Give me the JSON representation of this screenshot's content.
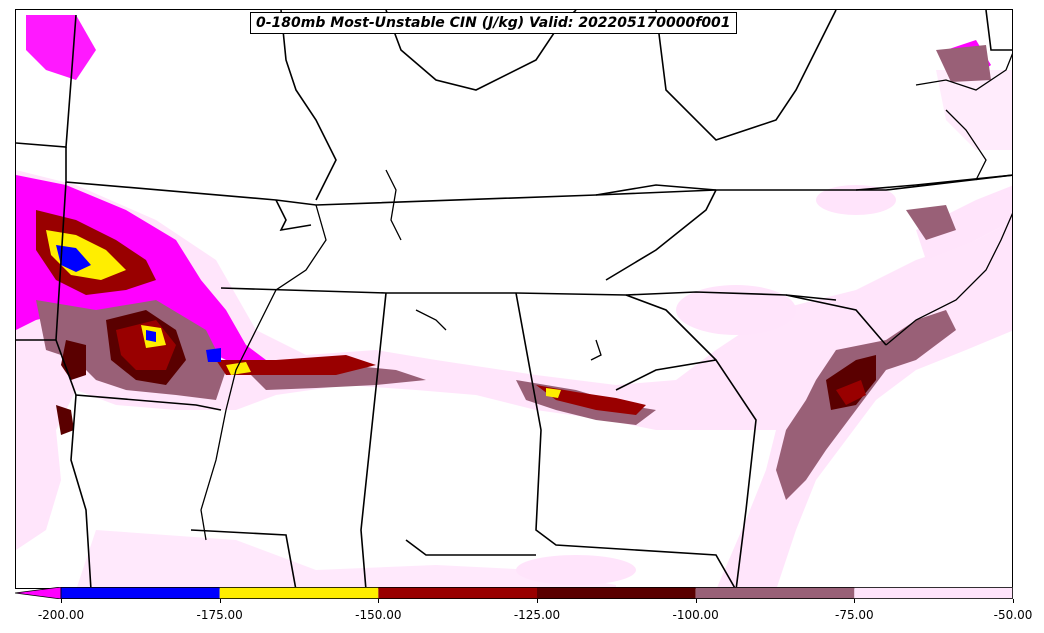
{
  "title": "0-180mb Most-Unstable CIN (J/kg) Valid: 202205170000f001",
  "colors": {
    "lt_-200": "#ff00ff",
    "-200_-175": "#0000ff",
    "-175_-150": "#ffee00",
    "-150_-125": "#990000",
    "-125_-100": "#5a0000",
    "-100_-75": "#996077",
    "-75_-50": "#ffe4fb"
  },
  "colorbar": {
    "ticks": [
      "-200.00",
      "-175.00",
      "-150.00",
      "-125.00",
      "-100.00",
      "-75.00",
      "-50.00"
    ],
    "bins": [
      {
        "from": -200,
        "to": -175,
        "color": "#0000ff"
      },
      {
        "from": -175,
        "to": -150,
        "color": "#ffee00"
      },
      {
        "from": -150,
        "to": -125,
        "color": "#990000"
      },
      {
        "from": -125,
        "to": -100,
        "color": "#5a0000"
      },
      {
        "from": -100,
        "to": -75,
        "color": "#996077"
      },
      {
        "from": -75,
        "to": -50,
        "color": "#ffe4fb"
      }
    ],
    "extend_min_color": "#ff00ff"
  }
}
